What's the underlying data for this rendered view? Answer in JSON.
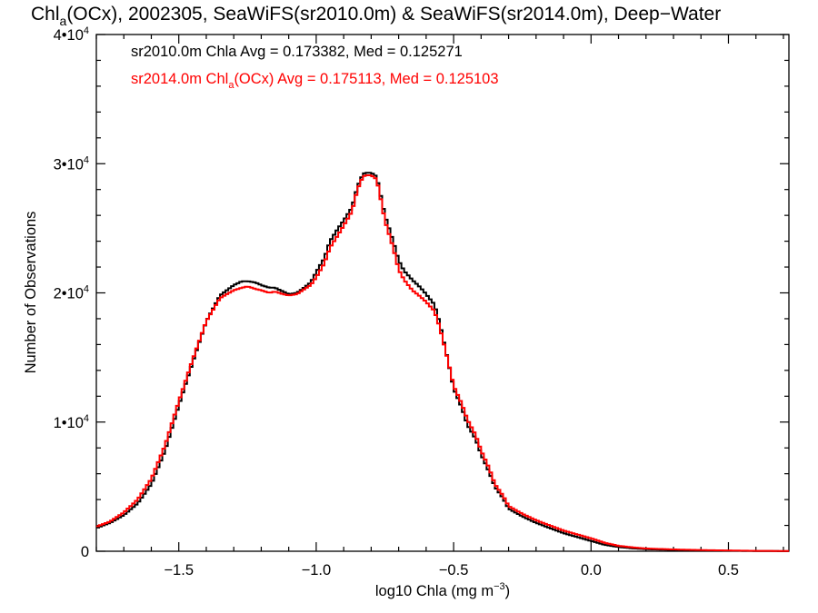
{
  "chart_data": {
    "type": "line",
    "title": {
      "pre": "Chl",
      "sub": "a",
      "post": "(OCx), 2002305, SeaWiFS(sr2010.0m) & SeaWiFS(sr2014.0m), Deep−Water"
    },
    "xlabel": {
      "pre": "log10 Chla (mg m",
      "sup": "−3",
      "post": ")"
    },
    "ylabel": "Number of Observations",
    "xlim": [
      -1.8,
      0.72
    ],
    "ylim": [
      0,
      40000
    ],
    "x_ticks": [
      {
        "value": -1.5,
        "label": "−1.5"
      },
      {
        "value": -1.0,
        "label": "−1.0"
      },
      {
        "value": -0.5,
        "label": "−0.5"
      },
      {
        "value": 0.0,
        "label": "0.0"
      },
      {
        "value": 0.5,
        "label": "0.5"
      }
    ],
    "y_ticks": [
      {
        "value": 0,
        "label": "0",
        "sup": ""
      },
      {
        "value": 10000,
        "label": "1•10",
        "sup": "4"
      },
      {
        "value": 20000,
        "label": "2•10",
        "sup": "4"
      },
      {
        "value": 30000,
        "label": "3•10",
        "sup": "4"
      },
      {
        "value": 40000,
        "label": "4•10",
        "sup": "4"
      }
    ],
    "legend_placement": "top-left",
    "series": [
      {
        "color": "#000000",
        "legend": {
          "pre": "sr2010.0m Chla Avg = 0.173382, Med = 0.125271",
          "sub": "",
          "post": ""
        },
        "x": [
          -1.8,
          -1.75,
          -1.7,
          -1.65,
          -1.6,
          -1.55,
          -1.5,
          -1.45,
          -1.4,
          -1.35,
          -1.3,
          -1.27,
          -1.25,
          -1.22,
          -1.2,
          -1.17,
          -1.15,
          -1.12,
          -1.1,
          -1.07,
          -1.05,
          -1.02,
          -1.0,
          -0.97,
          -0.95,
          -0.92,
          -0.9,
          -0.87,
          -0.85,
          -0.83,
          -0.82,
          -0.8,
          -0.78,
          -0.77,
          -0.75,
          -0.72,
          -0.7,
          -0.68,
          -0.65,
          -0.62,
          -0.6,
          -0.57,
          -0.55,
          -0.52,
          -0.5,
          -0.47,
          -0.45,
          -0.42,
          -0.4,
          -0.37,
          -0.35,
          -0.32,
          -0.3,
          -0.25,
          -0.2,
          -0.15,
          -0.1,
          -0.05,
          0.0,
          0.05,
          0.1,
          0.15,
          0.2,
          0.3,
          0.4,
          0.5,
          0.6,
          0.72
        ],
        "y": [
          1800,
          2200,
          2800,
          3700,
          5200,
          7800,
          11300,
          14600,
          17800,
          19800,
          20600,
          20900,
          20900,
          20800,
          20600,
          20400,
          20400,
          20100,
          19900,
          20000,
          20300,
          20800,
          21600,
          22700,
          24000,
          25000,
          25600,
          26600,
          28200,
          29200,
          29300,
          29300,
          29000,
          28000,
          26000,
          24000,
          22500,
          21700,
          21000,
          20400,
          19900,
          19100,
          17600,
          14700,
          12600,
          11100,
          9800,
          8700,
          7500,
          6100,
          5000,
          4100,
          3300,
          2700,
          2200,
          1800,
          1400,
          1100,
          800,
          500,
          330,
          230,
          160,
          100,
          60,
          40,
          20,
          10
        ]
      },
      {
        "color": "#ff0000",
        "legend": {
          "pre": "sr2014.0m Chl",
          "sub": "a",
          "post": "(OCx) Avg = 0.175113, Med = 0.125103"
        },
        "x": [
          -1.8,
          -1.75,
          -1.7,
          -1.65,
          -1.6,
          -1.55,
          -1.5,
          -1.45,
          -1.4,
          -1.35,
          -1.3,
          -1.27,
          -1.25,
          -1.22,
          -1.2,
          -1.17,
          -1.15,
          -1.12,
          -1.1,
          -1.07,
          -1.05,
          -1.02,
          -1.0,
          -0.97,
          -0.95,
          -0.92,
          -0.9,
          -0.87,
          -0.85,
          -0.83,
          -0.82,
          -0.8,
          -0.78,
          -0.77,
          -0.75,
          -0.72,
          -0.7,
          -0.68,
          -0.65,
          -0.62,
          -0.6,
          -0.57,
          -0.55,
          -0.52,
          -0.5,
          -0.47,
          -0.45,
          -0.42,
          -0.4,
          -0.37,
          -0.35,
          -0.32,
          -0.3,
          -0.25,
          -0.2,
          -0.15,
          -0.1,
          -0.05,
          0.0,
          0.05,
          0.1,
          0.15,
          0.2,
          0.3,
          0.4,
          0.5,
          0.6,
          0.72
        ],
        "y": [
          1900,
          2300,
          3000,
          4000,
          5600,
          8200,
          11600,
          14800,
          17800,
          19600,
          20200,
          20400,
          20500,
          20300,
          20200,
          20000,
          20100,
          19900,
          19800,
          19900,
          20200,
          20600,
          21200,
          22300,
          23500,
          24500,
          25200,
          26300,
          28000,
          29000,
          29100,
          29100,
          28800,
          27800,
          25600,
          23500,
          21800,
          21000,
          20200,
          19700,
          19300,
          18600,
          17300,
          14700,
          12800,
          11400,
          10200,
          9000,
          7800,
          6400,
          5200,
          4300,
          3500,
          2900,
          2400,
          2000,
          1600,
          1300,
          1000,
          650,
          420,
          300,
          210,
          140,
          90,
          60,
          30,
          15
        ]
      }
    ]
  }
}
